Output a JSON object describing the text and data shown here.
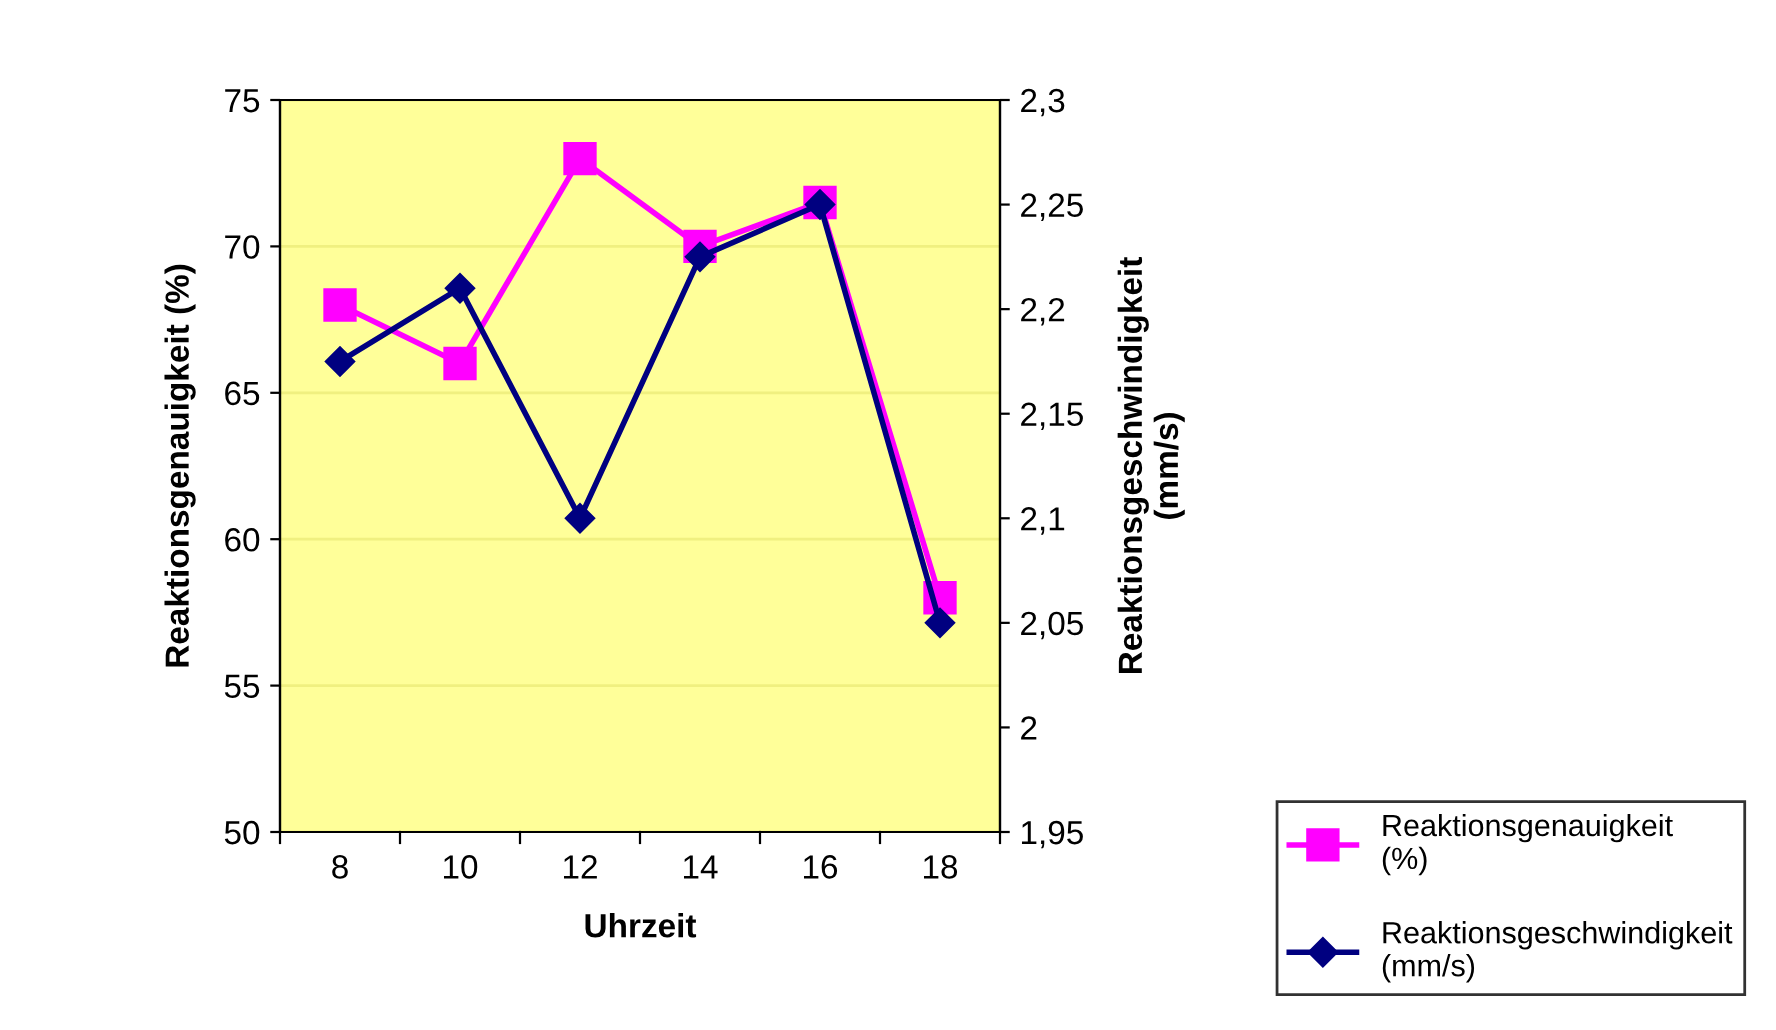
{
  "chart_data": {
    "type": "line",
    "xlabel": "Uhrzeit",
    "ylabel": "Reaktionsgenauigkeit (%)",
    "y2label": "Reaktionsgeschwindigkeit\n(mm/s)",
    "categories": [
      "8",
      "10",
      "12",
      "14",
      "16",
      "18"
    ],
    "series": [
      {
        "name": "Reaktionsgenauigkeit\n(%)",
        "color": "#ff00ff",
        "marker": "square",
        "values": [
          68,
          66,
          73,
          70,
          71.5,
          58
        ]
      },
      {
        "name": "Reaktionsgeschwindigkeit\n(mm/s)",
        "color": "#000080",
        "marker": "diamond",
        "axis": "y2",
        "values": [
          2.175,
          2.21,
          2.1,
          2.225,
          2.25,
          2.05
        ]
      }
    ],
    "ylim": [
      50,
      75
    ],
    "yticks": [
      50,
      55,
      60,
      65,
      70,
      75
    ],
    "y2lim": [
      1.95,
      2.3
    ],
    "y2ticks": [
      {
        "value": 1.95,
        "label": "1,95"
      },
      {
        "value": 2,
        "label": "2"
      },
      {
        "value": 2.05,
        "label": "2,05"
      },
      {
        "value": 2.1,
        "label": "2,1"
      },
      {
        "value": 2.15,
        "label": "2,15"
      },
      {
        "value": 2.2,
        "label": "2,2"
      },
      {
        "value": 2.25,
        "label": "2,25"
      },
      {
        "value": 2.3,
        "label": "2,3"
      }
    ],
    "grid": "y",
    "legend": "right",
    "line_style": "solid"
  }
}
